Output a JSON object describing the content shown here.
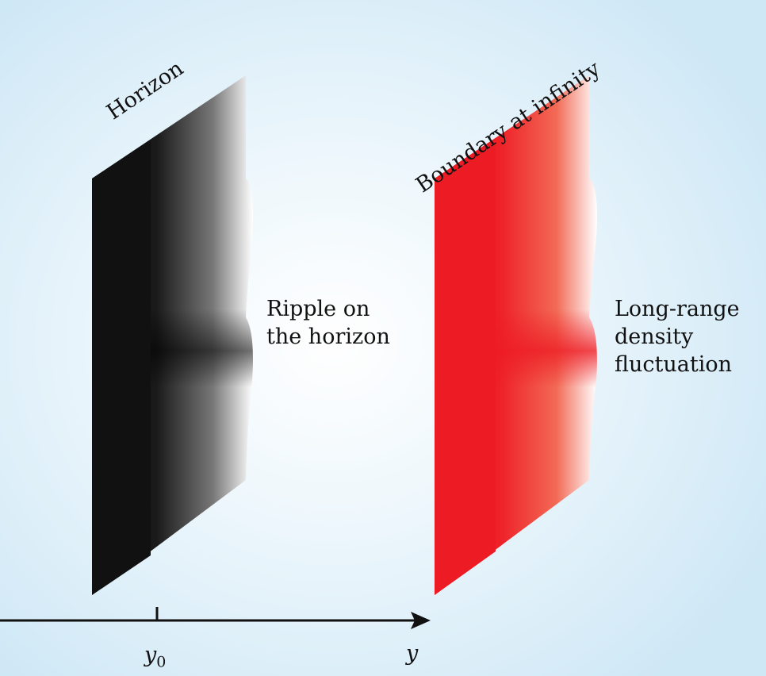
{
  "labels": {
    "horizon": "Horizon",
    "boundary": "Boundary at infinity",
    "ripple": [
      "Ripple on",
      "the horizon"
    ],
    "fluctuation": [
      "Long-range",
      "density",
      "fluctuation"
    ],
    "axis_y0": "y",
    "axis_y0_sub": "0",
    "axis_y": "y"
  },
  "colors": {
    "horizon_sheet": "#111111",
    "boundary_sheet": "#ed1c24",
    "axis": "#111111"
  }
}
